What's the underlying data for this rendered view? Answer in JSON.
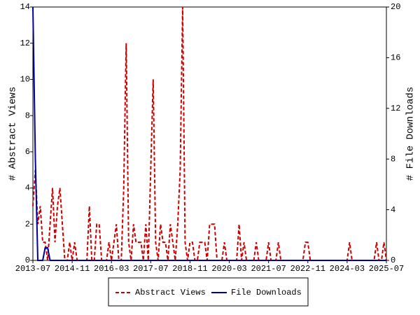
{
  "chart_data": {
    "type": "line",
    "x": [
      "2013-07",
      "2013-08",
      "2013-09",
      "2013-10",
      "2013-11",
      "2013-12",
      "2014-01",
      "2014-02",
      "2014-03",
      "2014-04",
      "2014-05",
      "2014-06",
      "2014-07",
      "2014-08",
      "2014-09",
      "2014-10",
      "2014-11",
      "2014-12",
      "2015-01",
      "2015-02",
      "2015-03",
      "2015-04",
      "2015-05",
      "2015-06",
      "2015-07",
      "2015-08",
      "2015-09",
      "2015-10",
      "2015-11",
      "2015-12",
      "2016-01",
      "2016-02",
      "2016-03",
      "2016-04",
      "2016-05",
      "2016-06",
      "2016-07",
      "2016-08",
      "2016-09",
      "2016-10",
      "2016-11",
      "2016-12",
      "2017-01",
      "2017-02",
      "2017-03",
      "2017-04",
      "2017-05",
      "2017-06",
      "2017-07",
      "2017-08",
      "2017-09",
      "2017-10",
      "2017-11",
      "2017-12",
      "2018-01",
      "2018-02",
      "2018-03",
      "2018-04",
      "2018-05",
      "2018-06",
      "2018-07",
      "2018-08",
      "2018-09",
      "2018-10",
      "2018-11",
      "2018-12",
      "2019-01",
      "2019-02",
      "2019-03",
      "2019-04",
      "2019-05",
      "2019-06",
      "2019-07",
      "2019-08",
      "2019-09",
      "2019-10",
      "2019-11",
      "2019-12",
      "2020-01",
      "2020-02",
      "2020-03",
      "2020-04",
      "2020-05",
      "2020-06",
      "2020-07",
      "2020-08",
      "2020-09",
      "2020-10",
      "2020-11",
      "2020-12",
      "2021-01",
      "2021-02",
      "2021-03",
      "2021-04",
      "2021-05",
      "2021-06",
      "2021-07",
      "2021-08",
      "2021-09",
      "2021-10",
      "2021-11",
      "2021-12",
      "2022-01",
      "2022-02",
      "2022-03",
      "2022-04",
      "2022-05",
      "2022-06",
      "2022-07",
      "2022-08",
      "2022-09",
      "2022-10",
      "2022-11",
      "2022-12",
      "2023-01",
      "2023-02",
      "2023-03",
      "2023-04",
      "2023-05",
      "2023-06",
      "2023-07",
      "2023-08",
      "2023-09",
      "2023-10",
      "2023-11",
      "2023-12",
      "2024-01",
      "2024-02",
      "2024-03",
      "2024-04",
      "2024-05",
      "2024-06",
      "2024-07",
      "2024-08",
      "2024-09",
      "2024-10",
      "2024-11",
      "2024-12",
      "2025-01",
      "2025-02",
      "2025-03",
      "2025-04",
      "2025-05",
      "2025-06",
      "2025-07"
    ],
    "xticks": [
      "2013-07",
      "2014-11",
      "2016-03",
      "2017-07",
      "2018-11",
      "2020-03",
      "2021-07",
      "2022-11",
      "2024-03",
      "2025-07"
    ],
    "ylabel": "# Abstract Views",
    "y2label": "# File Downloads",
    "ylim": [
      0,
      14
    ],
    "yticks": [
      0,
      2,
      4,
      6,
      8,
      10,
      12,
      14
    ],
    "y2lim": [
      0,
      20
    ],
    "y2ticks": [
      0,
      4,
      8,
      12,
      16,
      20
    ],
    "legend": "bottom",
    "series": [
      {
        "name": "Abstract Views",
        "color": "#cc0000",
        "dash": true,
        "values": [
          3,
          5,
          2,
          3,
          1,
          1,
          0,
          2,
          4,
          1,
          3,
          4,
          2,
          0,
          0,
          1,
          0,
          1,
          0,
          0,
          0,
          0,
          0,
          3,
          0,
          0,
          2,
          2,
          0,
          0,
          0,
          1,
          0,
          1,
          2,
          0,
          0,
          4,
          12,
          1,
          0,
          2,
          1,
          1,
          1,
          0,
          2,
          0,
          5,
          10,
          1,
          0,
          2,
          1,
          1,
          0,
          2,
          1,
          0,
          2,
          5,
          14,
          1,
          0,
          1,
          1,
          0,
          0,
          1,
          1,
          1,
          0,
          2,
          2,
          2,
          0,
          0,
          0,
          1,
          0,
          0,
          0,
          0,
          0,
          2,
          0,
          1,
          0,
          0,
          0,
          0,
          1,
          0,
          0,
          0,
          0,
          1,
          0,
          0,
          0,
          1,
          0,
          0,
          0,
          0,
          0,
          0,
          0,
          0,
          0,
          0,
          1,
          1,
          0,
          0,
          0,
          0,
          0,
          0,
          0,
          0,
          0,
          0,
          0,
          0,
          0,
          0,
          0,
          0,
          1,
          0,
          0,
          0,
          0,
          0,
          0,
          0,
          0,
          0,
          0,
          1,
          0,
          0,
          1,
          0
        ]
      },
      {
        "name": "File Downloads",
        "color": "#0000a0",
        "dash": false,
        "axis": "y2",
        "values": [
          20,
          8,
          0,
          0,
          0,
          1,
          1,
          0,
          0,
          0,
          0,
          0,
          0,
          0,
          0,
          0,
          0,
          0,
          0,
          0,
          0,
          0,
          0,
          0,
          0,
          0,
          0,
          0,
          0,
          0,
          0,
          0,
          0,
          0,
          0,
          0,
          0,
          0,
          0,
          0,
          0,
          0,
          0,
          0,
          0,
          0,
          0,
          0,
          0,
          0,
          0,
          0,
          0,
          0,
          0,
          0,
          0,
          0,
          0,
          0,
          0,
          0,
          0,
          0,
          0,
          0,
          0,
          0,
          0,
          0,
          0,
          0,
          0,
          0,
          0,
          0,
          0,
          0,
          0,
          0,
          0,
          0,
          0,
          0,
          0,
          0,
          0,
          0,
          0,
          0,
          0,
          0,
          0,
          0,
          0,
          0,
          0,
          0,
          0,
          0,
          0,
          0,
          0,
          0,
          0,
          0,
          0,
          0,
          0,
          0,
          0,
          0,
          0,
          0,
          0,
          0,
          0,
          0,
          0,
          0,
          0,
          0,
          0,
          0,
          0,
          0,
          0,
          0,
          0,
          0,
          0,
          0,
          0,
          0,
          0,
          0,
          0,
          0,
          0,
          0,
          0,
          0,
          0,
          0,
          0
        ]
      }
    ]
  }
}
